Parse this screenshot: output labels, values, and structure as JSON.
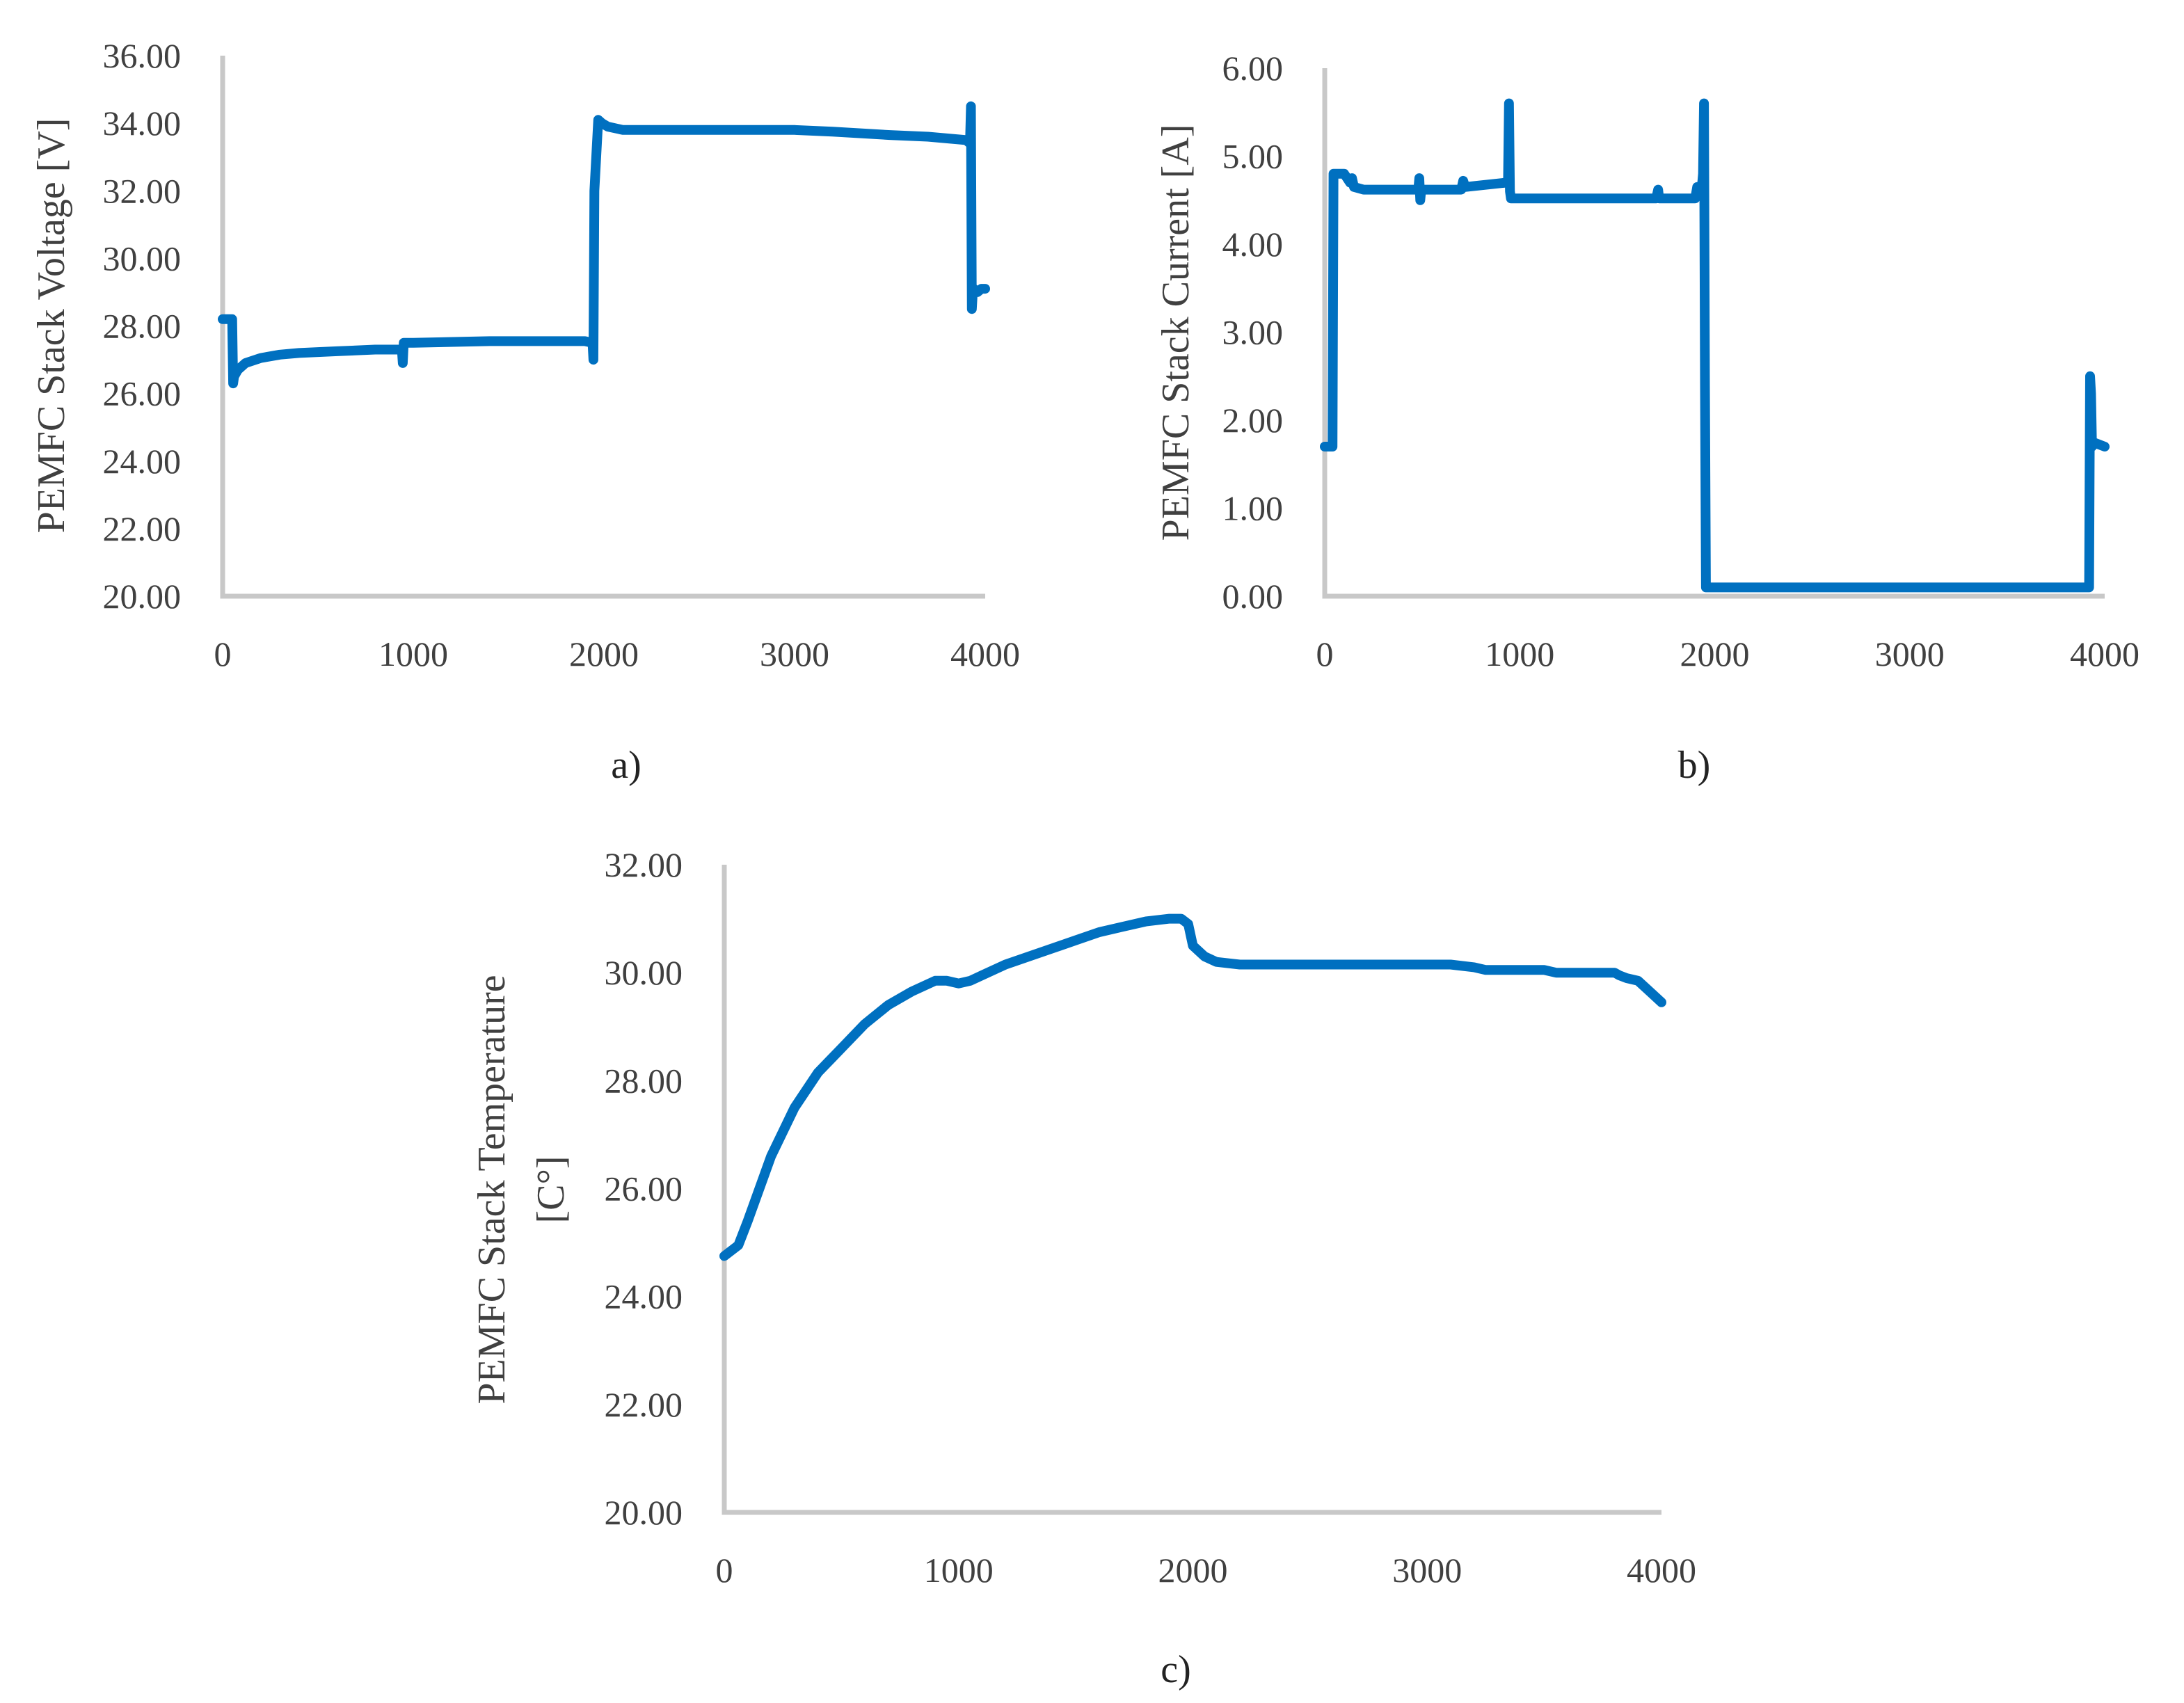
{
  "colors": {
    "series": "#0070c0",
    "axis": "#c8c8c8",
    "text": "#404040"
  },
  "chart_data": [
    {
      "id": "a",
      "type": "line",
      "caption": "a)",
      "title": "",
      "xlabel": "",
      "ylabel": "PEMFC Stack Voltage [V]",
      "xlim": [
        0,
        4000
      ],
      "ylim": [
        20,
        36
      ],
      "xticks": [
        "0",
        "1000",
        "2000",
        "3000",
        "4000"
      ],
      "yticks": [
        "20.00",
        "22.00",
        "24.00",
        "26.00",
        "28.00",
        "30.00",
        "32.00",
        "34.00",
        "36.00"
      ],
      "grid": false,
      "legend": null,
      "series": [
        {
          "name": "PEMFC Stack Voltage",
          "x": [
            0,
            50,
            55,
            60,
            80,
            120,
            200,
            300,
            400,
            600,
            800,
            940,
            945,
            950,
            955,
            1000,
            1400,
            1900,
            1940,
            1945,
            1950,
            1970,
            1990,
            2020,
            2100,
            2300,
            2600,
            3000,
            3200,
            3500,
            3700,
            3900,
            3920,
            3925,
            3930,
            3935,
            3940,
            3960,
            3980,
            4000
          ],
          "y": [
            28.2,
            28.2,
            26.3,
            26.5,
            26.7,
            26.9,
            27.05,
            27.15,
            27.2,
            27.25,
            27.3,
            27.3,
            26.9,
            27.5,
            27.5,
            27.5,
            27.55,
            27.55,
            27.5,
            27.0,
            32.0,
            34.1,
            34.0,
            33.9,
            33.8,
            33.8,
            33.8,
            33.8,
            33.75,
            33.65,
            33.6,
            33.5,
            33.4,
            34.5,
            28.5,
            29.0,
            29.1,
            29.0,
            29.1,
            29.1
          ]
        }
      ]
    },
    {
      "id": "b",
      "type": "line",
      "caption": "b)",
      "title": "",
      "xlabel": "",
      "ylabel": "PEMFC Stack Current [A]",
      "xlim": [
        0,
        4000
      ],
      "ylim": [
        0,
        6
      ],
      "xticks": [
        "0",
        "1000",
        "2000",
        "3000",
        "4000"
      ],
      "yticks": [
        "0.00",
        "1.00",
        "2.00",
        "3.00",
        "4.00",
        "5.00",
        "6.00"
      ],
      "grid": false,
      "legend": null,
      "series": [
        {
          "name": "PEMFC Stack Current",
          "x": [
            0,
            40,
            45,
            50,
            100,
            130,
            140,
            150,
            200,
            480,
            485,
            490,
            495,
            500,
            700,
            710,
            720,
            930,
            940,
            945,
            950,
            955,
            1000,
            1700,
            1710,
            1715,
            1720,
            1900,
            1910,
            1930,
            1940,
            1945,
            1950,
            1955,
            1960,
            2000,
            3900,
            3920,
            3925,
            3930,
            3935,
            3940,
            4000
          ],
          "y": [
            1.7,
            1.7,
            4.8,
            4.8,
            4.8,
            4.7,
            4.75,
            4.65,
            4.62,
            4.62,
            4.75,
            4.5,
            4.62,
            4.62,
            4.62,
            4.72,
            4.65,
            4.7,
            4.7,
            5.6,
            4.6,
            4.52,
            4.52,
            4.52,
            4.62,
            4.52,
            4.52,
            4.52,
            4.65,
            4.55,
            4.8,
            5.6,
            2.4,
            0.1,
            0.1,
            0.1,
            0.1,
            0.1,
            2.5,
            2.3,
            1.7,
            1.75,
            1.7
          ]
        }
      ]
    },
    {
      "id": "c",
      "type": "line",
      "caption": "c)",
      "title": "",
      "xlabel": "",
      "ylabel": "PEMFC Stack Temperature",
      "ylabel_line2": "[C°]",
      "xlim": [
        0,
        4000
      ],
      "ylim": [
        20,
        32
      ],
      "xticks": [
        "0",
        "1000",
        "2000",
        "3000",
        "4000"
      ],
      "yticks": [
        "20.00",
        "22.00",
        "24.00",
        "26.00",
        "28.00",
        "30.00",
        "32.00"
      ],
      "grid": false,
      "legend": null,
      "series": [
        {
          "name": "PEMFC Stack Temperature",
          "x": [
            0,
            60,
            100,
            150,
            200,
            300,
            400,
            500,
            600,
            700,
            800,
            900,
            950,
            1000,
            1050,
            1100,
            1200,
            1300,
            1400,
            1500,
            1600,
            1700,
            1800,
            1900,
            1950,
            1980,
            2000,
            2050,
            2100,
            2200,
            2500,
            2800,
            3100,
            3200,
            3250,
            3500,
            3550,
            3600,
            3800,
            3820,
            3850,
            3900,
            3950,
            4000
          ],
          "y": [
            24.75,
            24.95,
            25.4,
            26.0,
            26.6,
            27.5,
            28.15,
            28.6,
            29.05,
            29.4,
            29.65,
            29.85,
            29.85,
            29.8,
            29.85,
            29.95,
            30.15,
            30.3,
            30.45,
            30.6,
            30.75,
            30.85,
            30.95,
            31.0,
            31.0,
            30.9,
            30.5,
            30.3,
            30.2,
            30.15,
            30.15,
            30.15,
            30.15,
            30.1,
            30.05,
            30.05,
            30.0,
            30.0,
            30.0,
            29.95,
            29.9,
            29.85,
            29.65,
            29.45
          ]
        }
      ]
    }
  ]
}
